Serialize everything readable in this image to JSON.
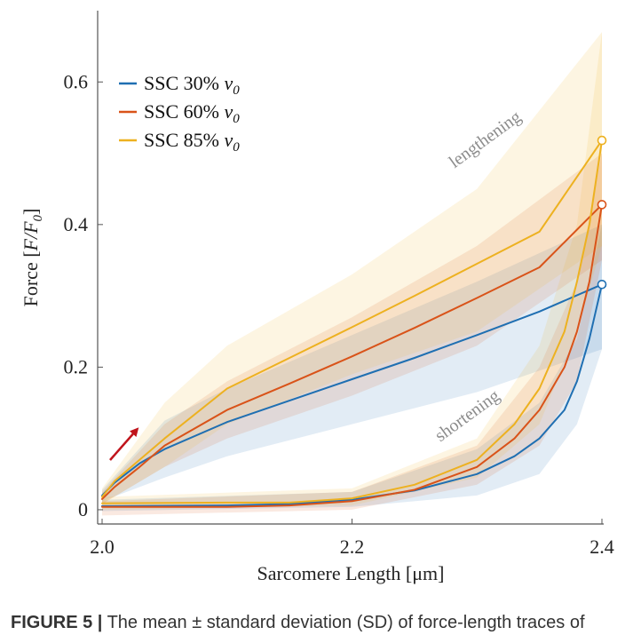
{
  "chart_data": {
    "type": "line",
    "xlabel": "Sarcomere Length [μm]",
    "ylabel_prefix": "Force [",
    "ylabel_var": "F/F",
    "ylabel_sub": "0",
    "ylabel_suffix": "]",
    "xlim": [
      2.0,
      2.4
    ],
    "ylim": [
      -0.02,
      0.7
    ],
    "x_ticks": [
      2.0,
      2.2,
      2.4
    ],
    "x_tick_labels": [
      "2.0",
      "2.2",
      "2.4"
    ],
    "y_ticks": [
      0,
      0.2,
      0.4,
      0.6
    ],
    "y_tick_labels": [
      "0",
      "0.2",
      "0.4",
      "0.6"
    ],
    "grid": false,
    "legend_position": "top-left",
    "annotations": {
      "lengthening": "lengthening",
      "shortening": "shortening"
    },
    "series": [
      {
        "name_prefix": "SSC 30% ",
        "name_var": "v",
        "name_sub": "0",
        "color": "#1f6fb2",
        "lengthening": [
          [
            2.0,
            0.02
          ],
          [
            2.01,
            0.038
          ],
          [
            2.03,
            0.065
          ],
          [
            2.05,
            0.085
          ],
          [
            2.1,
            0.123
          ],
          [
            2.15,
            0.153
          ],
          [
            2.2,
            0.183
          ],
          [
            2.25,
            0.213
          ],
          [
            2.3,
            0.245
          ],
          [
            2.35,
            0.278
          ],
          [
            2.4,
            0.316
          ]
        ],
        "lengthening_band": [
          [
            2.0,
            0.012,
            0.028
          ],
          [
            2.05,
            0.045,
            0.125
          ],
          [
            2.1,
            0.075,
            0.17
          ],
          [
            2.2,
            0.12,
            0.245
          ],
          [
            2.3,
            0.165,
            0.32
          ],
          [
            2.4,
            0.225,
            0.4
          ]
        ],
        "shortening": [
          [
            2.0,
            0.005
          ],
          [
            2.1,
            0.006
          ],
          [
            2.15,
            0.008
          ],
          [
            2.2,
            0.014
          ],
          [
            2.25,
            0.027
          ],
          [
            2.3,
            0.05
          ],
          [
            2.33,
            0.075
          ],
          [
            2.35,
            0.1
          ],
          [
            2.37,
            0.14
          ],
          [
            2.38,
            0.18
          ],
          [
            2.39,
            0.24
          ],
          [
            2.4,
            0.316
          ]
        ],
        "shortening_band": [
          [
            2.0,
            -0.002,
            0.014
          ],
          [
            2.2,
            0.004,
            0.025
          ],
          [
            2.3,
            0.02,
            0.085
          ],
          [
            2.35,
            0.05,
            0.15
          ],
          [
            2.38,
            0.12,
            0.24
          ],
          [
            2.4,
            0.225,
            0.4
          ]
        ]
      },
      {
        "name_prefix": "SSC 60% ",
        "name_var": "v",
        "name_sub": "0",
        "color": "#d95319",
        "lengthening": [
          [
            2.0,
            0.015
          ],
          [
            2.01,
            0.032
          ],
          [
            2.03,
            0.06
          ],
          [
            2.05,
            0.09
          ],
          [
            2.1,
            0.14
          ],
          [
            2.15,
            0.177
          ],
          [
            2.2,
            0.215
          ],
          [
            2.25,
            0.255
          ],
          [
            2.3,
            0.297
          ],
          [
            2.35,
            0.34
          ],
          [
            2.4,
            0.428
          ]
        ],
        "lengthening_band": [
          [
            2.0,
            0.008,
            0.025
          ],
          [
            2.05,
            0.06,
            0.12
          ],
          [
            2.1,
            0.1,
            0.18
          ],
          [
            2.2,
            0.16,
            0.27
          ],
          [
            2.3,
            0.23,
            0.37
          ],
          [
            2.4,
            0.35,
            0.5
          ]
        ],
        "shortening": [
          [
            2.0,
            0.004
          ],
          [
            2.1,
            0.004
          ],
          [
            2.15,
            0.006
          ],
          [
            2.2,
            0.012
          ],
          [
            2.25,
            0.028
          ],
          [
            2.3,
            0.06
          ],
          [
            2.33,
            0.1
          ],
          [
            2.35,
            0.14
          ],
          [
            2.37,
            0.2
          ],
          [
            2.38,
            0.25
          ],
          [
            2.39,
            0.32
          ],
          [
            2.4,
            0.428
          ]
        ],
        "shortening_band": [
          [
            2.0,
            -0.008,
            0.012
          ],
          [
            2.2,
            0.0,
            0.025
          ],
          [
            2.3,
            0.035,
            0.09
          ],
          [
            2.35,
            0.09,
            0.2
          ],
          [
            2.38,
            0.18,
            0.32
          ],
          [
            2.4,
            0.35,
            0.5
          ]
        ]
      },
      {
        "name_prefix": "SSC 85% ",
        "name_var": "v",
        "name_sub": "0",
        "color": "#edb120",
        "lengthening": [
          [
            2.0,
            0.018
          ],
          [
            2.01,
            0.04
          ],
          [
            2.03,
            0.07
          ],
          [
            2.05,
            0.1
          ],
          [
            2.1,
            0.17
          ],
          [
            2.15,
            0.213
          ],
          [
            2.2,
            0.256
          ],
          [
            2.25,
            0.3
          ],
          [
            2.3,
            0.345
          ],
          [
            2.35,
            0.39
          ],
          [
            2.4,
            0.518
          ]
        ],
        "lengthening_band": [
          [
            2.0,
            0.008,
            0.03
          ],
          [
            2.05,
            0.06,
            0.15
          ],
          [
            2.1,
            0.12,
            0.23
          ],
          [
            2.2,
            0.19,
            0.33
          ],
          [
            2.3,
            0.25,
            0.45
          ],
          [
            2.4,
            0.37,
            0.67
          ]
        ],
        "shortening": [
          [
            2.0,
            0.009
          ],
          [
            2.1,
            0.01
          ],
          [
            2.15,
            0.01
          ],
          [
            2.2,
            0.016
          ],
          [
            2.25,
            0.035
          ],
          [
            2.3,
            0.07
          ],
          [
            2.33,
            0.12
          ],
          [
            2.35,
            0.17
          ],
          [
            2.37,
            0.25
          ],
          [
            2.38,
            0.32
          ],
          [
            2.39,
            0.4
          ],
          [
            2.4,
            0.518
          ]
        ],
        "shortening_band": [
          [
            2.0,
            0.0,
            0.018
          ],
          [
            2.2,
            0.006,
            0.03
          ],
          [
            2.3,
            0.045,
            0.1
          ],
          [
            2.35,
            0.12,
            0.23
          ],
          [
            2.38,
            0.25,
            0.4
          ],
          [
            2.4,
            0.37,
            0.67
          ]
        ]
      }
    ],
    "arrow_color": "#c0141c"
  },
  "caption": {
    "label": "FIGURE 5 |",
    "text": " The mean ± standard deviation (SD) of force-length traces of"
  }
}
